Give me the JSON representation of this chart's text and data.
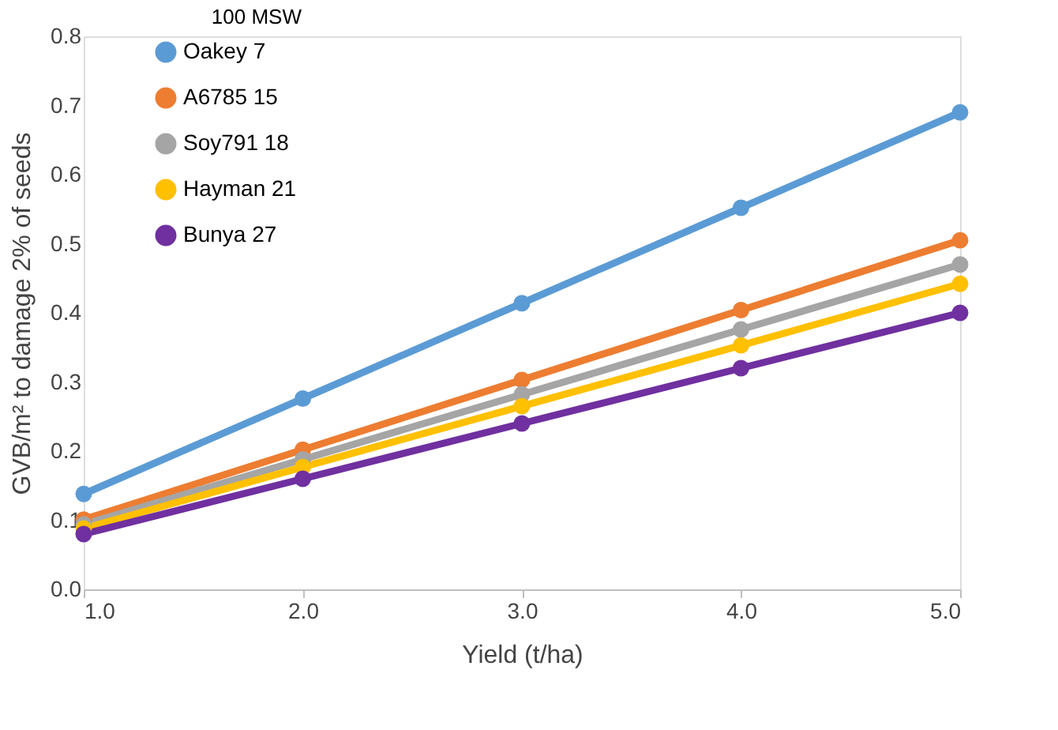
{
  "chart_data": {
    "type": "line",
    "xlabel": "Yield (t/ha)",
    "ylabel": "GVB/m² to damage 2% of seeds",
    "legend_title": "100 MSW",
    "x": [
      1,
      2,
      3,
      4,
      5
    ],
    "series": [
      {
        "name": "Oakey     7",
        "color": "#5b9bd5",
        "values": [
          0.138,
          0.276,
          0.414,
          0.552,
          0.69
        ]
      },
      {
        "name": "A6785    15",
        "color": "#ed7d31",
        "values": [
          0.101,
          0.202,
          0.303,
          0.404,
          0.505
        ]
      },
      {
        "name": "Soy791   18",
        "color": "#a5a5a5",
        "values": [
          0.094,
          0.188,
          0.282,
          0.376,
          0.47
        ]
      },
      {
        "name": "Hayman  21",
        "color": "#ffc000",
        "values": [
          0.088,
          0.177,
          0.265,
          0.353,
          0.442
        ]
      },
      {
        "name": "Bunya    27",
        "color": "#7030a0",
        "values": [
          0.08,
          0.16,
          0.24,
          0.32,
          0.4
        ]
      }
    ],
    "xlim": [
      1,
      5
    ],
    "xticks": [
      {
        "value": 1,
        "label": "1.0"
      },
      {
        "value": 2,
        "label": "2.0"
      },
      {
        "value": 3,
        "label": "3.0"
      },
      {
        "value": 4,
        "label": "4.0"
      },
      {
        "value": 5,
        "label": "5.0"
      }
    ],
    "ylim": [
      0,
      0.8
    ],
    "yticks": [
      {
        "value": 0,
        "label": "0.0"
      },
      0.1,
      0.2,
      0.3,
      0.4,
      0.5,
      0.6,
      0.7,
      0.8
    ],
    "grid": false,
    "legend": "top left",
    "marker": "circle",
    "line_style": "solid"
  }
}
